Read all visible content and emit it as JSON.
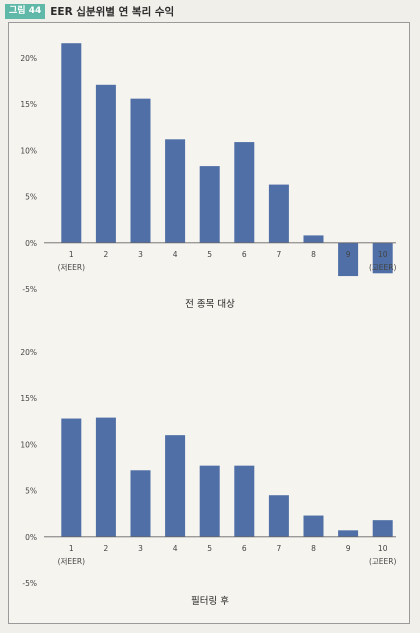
{
  "figure": {
    "badge": "그림 44",
    "title": "EER 십분위별 연 복리 수익"
  },
  "chart_data": [
    {
      "type": "bar",
      "title": "전 종목 대상",
      "categories": [
        "1",
        "2",
        "3",
        "4",
        "5",
        "6",
        "7",
        "8",
        "9",
        "10"
      ],
      "category_sublabels": {
        "1": "(저EER)",
        "10": "(고EER)"
      },
      "values": [
        21.6,
        17.1,
        15.6,
        11.2,
        8.3,
        10.9,
        6.3,
        0.8,
        -3.6,
        -3.3
      ],
      "yticks": [
        "-5%",
        "0%",
        "5%",
        "10%",
        "15%",
        "20%"
      ],
      "ylim": [
        -5,
        20
      ],
      "bar_color": "#4f6fa6",
      "grid": false
    },
    {
      "type": "bar",
      "title": "필터링 후",
      "categories": [
        "1",
        "2",
        "3",
        "4",
        "5",
        "6",
        "7",
        "8",
        "9",
        "10"
      ],
      "category_sublabels": {
        "1": "(저EER)",
        "10": "(고EER)"
      },
      "values": [
        12.8,
        12.9,
        7.2,
        11.0,
        7.7,
        7.7,
        4.5,
        2.3,
        0.7,
        1.8
      ],
      "yticks": [
        "-5%",
        "0%",
        "5%",
        "10%",
        "15%",
        "20%"
      ],
      "ylim": [
        -5,
        20
      ],
      "bar_color": "#4f6fa6",
      "grid": false
    }
  ]
}
